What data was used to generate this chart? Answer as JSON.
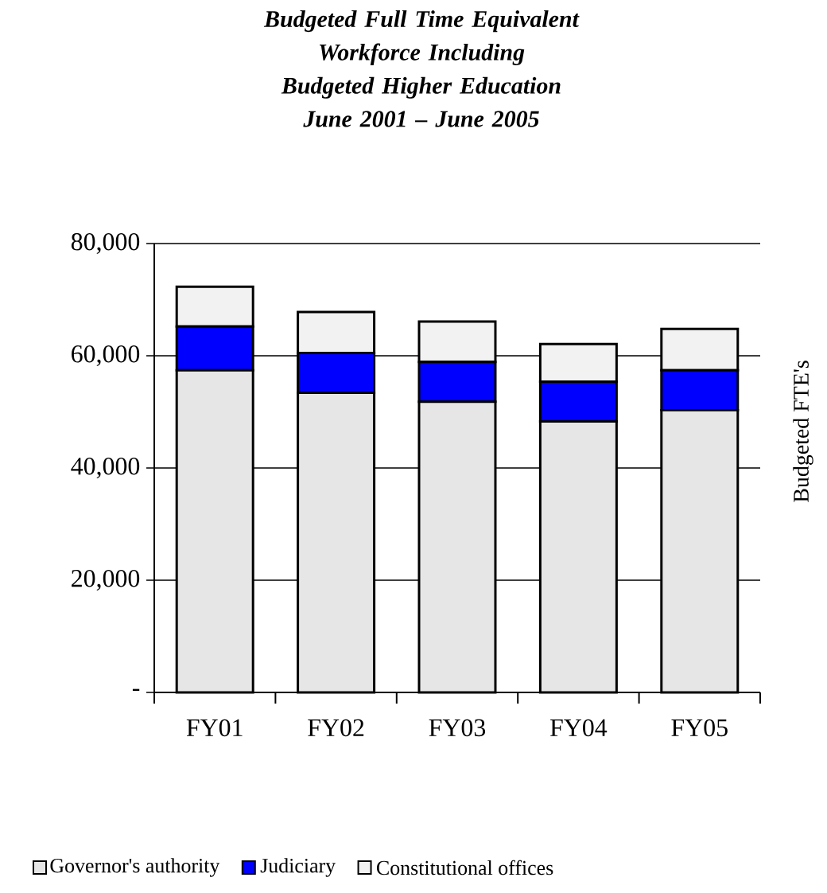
{
  "chart_data": {
    "type": "bar",
    "stacked": true,
    "title": "Budgeted Full Time Equivalent Workforce Including Budgeted Higher Education",
    "subtitle": "June 2001 – June 2005",
    "ylabel": "Budgeted FTE's",
    "categories": [
      "FY01",
      "FY02",
      "FY03",
      "FY04",
      "FY05"
    ],
    "series": [
      {
        "name": "Governor's authority",
        "color": "#e6e6e6",
        "values": [
          57400,
          53400,
          51800,
          48300,
          50300
        ]
      },
      {
        "name": "Judiciary",
        "color": "#0000ff",
        "values": [
          7800,
          7100,
          7100,
          7100,
          7100
        ]
      },
      {
        "name": "Constitutional offices",
        "color": "#f2f2f2",
        "values": [
          7100,
          7300,
          7200,
          6700,
          7400
        ]
      }
    ],
    "ylim": [
      0,
      80000
    ],
    "yticks": [
      {
        "value": 0,
        "label": "-"
      },
      {
        "value": 20000,
        "label": "20,000"
      },
      {
        "value": 40000,
        "label": "40,000"
      },
      {
        "value": 60000,
        "label": "60,000"
      },
      {
        "value": 80000,
        "label": "80,000"
      }
    ],
    "grid": "y",
    "legend": "bottom"
  }
}
